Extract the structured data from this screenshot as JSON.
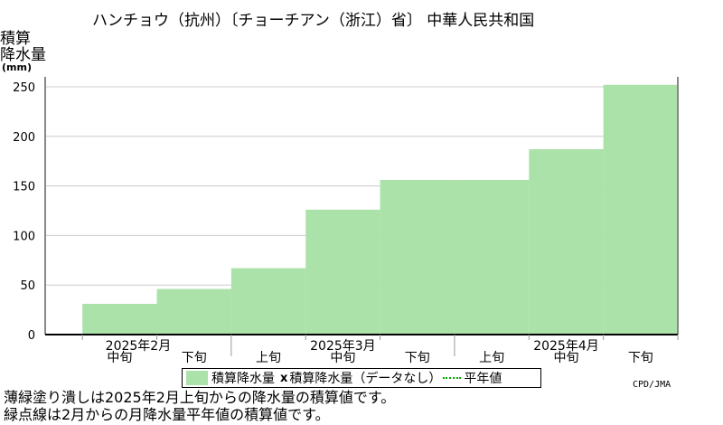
{
  "title": "ハンチョウ（抗州）〔チョーチアン（浙江）省〕 中華人民共和国",
  "ylabel_lines": [
    "積算",
    "降水量",
    "(mm)"
  ],
  "credit": "CPD/JMA",
  "notes": [
    "薄緑塗り潰しは2025年2月上旬からの降水量の積算値です。",
    "緑点線は2月からの月降水量平年値の積算値です。"
  ],
  "legend": {
    "area_label": "積算降水量",
    "missing_mark": "x",
    "missing_label": "積算降水量（データなし）",
    "normal_label": "平年値"
  },
  "colors": {
    "fill": "#abe2a9",
    "grid": "#cccccc",
    "normal_line": "#00aa00"
  },
  "chart_data": {
    "type": "area",
    "ylim": [
      0,
      260
    ],
    "yticks": [
      0,
      50,
      100,
      150,
      200,
      250
    ],
    "periods": [
      "2月中旬",
      "2月下旬",
      "3月上旬",
      "3月中旬",
      "3月下旬",
      "4月上旬",
      "4月中旬",
      "4月下旬"
    ],
    "period_labels": [
      "中旬",
      "下旬",
      "上旬",
      "中旬",
      "下旬",
      "上旬",
      "中旬",
      "下旬"
    ],
    "month_labels": [
      "2025年2月",
      "2025年3月",
      "2025年4月"
    ],
    "values": [
      31,
      46,
      67,
      126,
      156,
      156,
      187,
      252
    ],
    "series": [
      {
        "name": "積算降水量",
        "values": [
          31,
          46,
          67,
          126,
          156,
          156,
          187,
          252
        ]
      }
    ]
  }
}
